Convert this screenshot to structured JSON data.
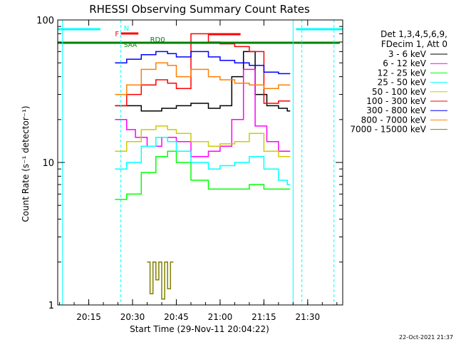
{
  "chart_data": {
    "type": "line",
    "title": "RHESSI Observing Summary Count Rates",
    "xlabel": "Start Time (29-Nov-11 20:04:22)",
    "ylabel": "Count Rate (s⁻¹ detector⁻¹)",
    "yscale": "log",
    "ylim": [
      1,
      100
    ],
    "xlim": [
      "20:04:22",
      "21:42:00"
    ],
    "x_ticks": [
      "20:15",
      "20:30",
      "20:45",
      "21:00",
      "21:15",
      "21:30"
    ],
    "y_ticks": [
      "1",
      "10",
      "100"
    ],
    "legend_position": "right",
    "legend_header": [
      "Det 1,3,4,5,6,9,",
      "FDecim 1, Att 0"
    ],
    "timestamp": "22-Oct-2021 21:37",
    "series": [
      {
        "name": "3 - 6 keV",
        "color": "#000000",
        "x": [
          "20:19",
          "20:24",
          "20:28",
          "20:33",
          "20:40",
          "20:45",
          "20:50",
          "20:56",
          "21:00",
          "21:04",
          "21:08",
          "21:12",
          "21:16",
          "21:20",
          "21:23",
          "21:24"
        ],
        "y": [
          null,
          25,
          25,
          23,
          24,
          25,
          26,
          24,
          25,
          40,
          60,
          30,
          25,
          24,
          23,
          null
        ]
      },
      {
        "name": "6 - 12 keV",
        "color": "#ff00ff",
        "x": [
          "20:19",
          "20:24",
          "20:28",
          "20:31",
          "20:35",
          "20:40",
          "20:45",
          "20:50",
          "20:56",
          "21:00",
          "21:04",
          "21:08",
          "21:12",
          "21:16",
          "21:20",
          "21:23",
          "21:24"
        ],
        "y": [
          null,
          20,
          17,
          15,
          13,
          15,
          14,
          11,
          12,
          13,
          20,
          45,
          18,
          14,
          12,
          12,
          null
        ]
      },
      {
        "name": "12 - 25 keV",
        "color": "#00ff00",
        "x": [
          "20:19",
          "20:24",
          "20:28",
          "20:33",
          "20:38",
          "20:42",
          "20:45",
          "20:50",
          "20:56",
          "21:00",
          "21:05",
          "21:10",
          "21:15",
          "21:20",
          "21:23",
          "21:24"
        ],
        "y": [
          null,
          5.5,
          6,
          8.5,
          11,
          12,
          10,
          7.5,
          6.5,
          6.5,
          6.5,
          7,
          6.5,
          6.5,
          6.5,
          null
        ]
      },
      {
        "name": "25 - 50 keV",
        "color": "#00ffff",
        "x": [
          "20:19",
          "20:24",
          "20:28",
          "20:33",
          "20:38",
          "20:42",
          "20:45",
          "20:50",
          "20:56",
          "21:00",
          "21:05",
          "21:10",
          "21:15",
          "21:20",
          "21:23",
          "21:24"
        ],
        "y": [
          null,
          9,
          10,
          13,
          15,
          14,
          12,
          10,
          9,
          9.5,
          10,
          11,
          9,
          7.5,
          7,
          null
        ]
      },
      {
        "name": "50 - 100 keV",
        "color": "#cccc00",
        "x": [
          "20:19",
          "20:24",
          "20:28",
          "20:33",
          "20:38",
          "20:42",
          "20:45",
          "20:50",
          "20:56",
          "21:00",
          "21:05",
          "21:10",
          "21:15",
          "21:20",
          "21:23",
          "21:24"
        ],
        "y": [
          null,
          12,
          14,
          17,
          18,
          17,
          16,
          14,
          13,
          13.5,
          14,
          16,
          12,
          11,
          11,
          null
        ]
      },
      {
        "name": "100 - 300 keV",
        "color": "#ff0000",
        "x": [
          "20:19",
          "20:24",
          "20:28",
          "20:33",
          "20:38",
          "20:42",
          "20:45",
          "20:50",
          "20:56",
          "21:00",
          "21:05",
          "21:10",
          "21:15",
          "21:20",
          "21:23",
          "21:24"
        ],
        "y": [
          null,
          25,
          30,
          35,
          38,
          36,
          33,
          80,
          70,
          68,
          65,
          60,
          26,
          27,
          27,
          null
        ]
      },
      {
        "name": "300 - 800 keV",
        "color": "#0000ff",
        "x": [
          "20:19",
          "20:24",
          "20:28",
          "20:33",
          "20:38",
          "20:42",
          "20:45",
          "20:50",
          "20:56",
          "21:00",
          "21:05",
          "21:10",
          "21:15",
          "21:20",
          "21:23",
          "21:24"
        ],
        "y": [
          null,
          50,
          53,
          57,
          60,
          58,
          55,
          60,
          55,
          52,
          50,
          48,
          43,
          42,
          42,
          null
        ]
      },
      {
        "name": "800 - 7000 keV",
        "color": "#ff8000",
        "x": [
          "20:19",
          "20:24",
          "20:28",
          "20:33",
          "20:38",
          "20:42",
          "20:45",
          "20:50",
          "20:56",
          "21:00",
          "21:05",
          "21:10",
          "21:15",
          "21:20",
          "21:23",
          "21:24"
        ],
        "y": [
          null,
          30,
          35,
          45,
          50,
          48,
          40,
          45,
          40,
          38,
          36,
          35,
          33,
          35,
          35,
          null
        ]
      },
      {
        "name": "7000 - 15000 keV",
        "color": "#808000",
        "x": [
          "20:30",
          "20:35",
          "20:36",
          "20:37",
          "20:38",
          "20:39",
          "20:40",
          "20:41",
          "20:42",
          "20:43",
          "20:44"
        ],
        "y": [
          null,
          2,
          1.2,
          2,
          1.5,
          2,
          1.1,
          2,
          1.3,
          2,
          null
        ]
      }
    ],
    "annotations": [
      {
        "text": "N",
        "color": "#00ffff"
      },
      {
        "text": "F",
        "color": "#ff0000"
      },
      {
        "text": "RD0",
        "color": "#008000"
      },
      {
        "text": "SAA",
        "color": "#008000"
      }
    ]
  }
}
